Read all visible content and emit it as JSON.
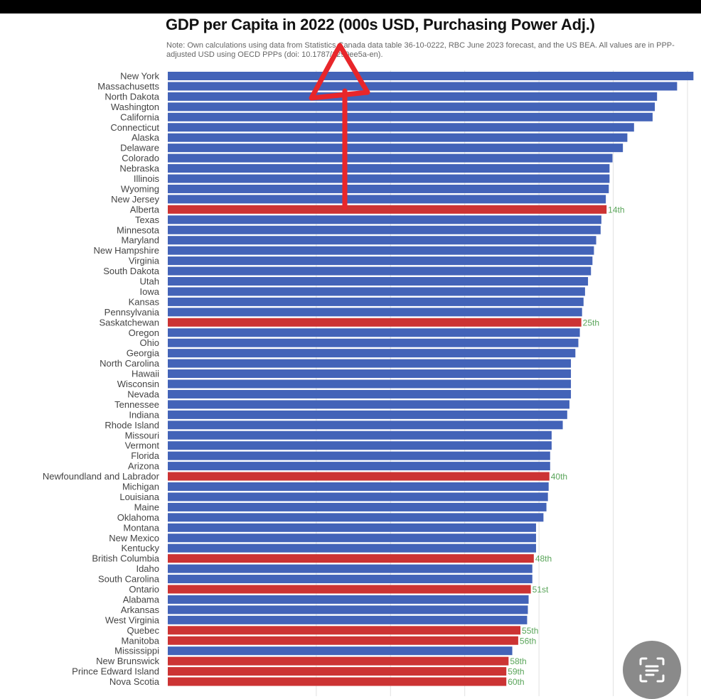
{
  "chart_data": {
    "type": "bar",
    "orientation": "horizontal",
    "title": "GDP per Capita in 2022 (000s USD, Purchasing Power Adj.)",
    "note": "Note: Own calculations using data from Statistics Canada data table 36-10-0222, RBC June 2023 forecast, and the US BEA. All values are in PPP-adjusted USD using OECD PPPs (doi: 10.1787/1290ee5a-en).",
    "xlim": [
      40,
      110
    ],
    "grid": true,
    "colors": {
      "us": "#4363b8",
      "canada": "#cc3333",
      "rank_label": "#5aa55a"
    },
    "categories": [
      "New York",
      "Massachusetts",
      "North Dakota",
      "Washington",
      "California",
      "Connecticut",
      "Alaska",
      "Delaware",
      "Colorado",
      "Nebraska",
      "Illinois",
      "Wyoming",
      "New Jersey",
      "Alberta",
      "Texas",
      "Minnesota",
      "Maryland",
      "New Hampshire",
      "Virginia",
      "South Dakota",
      "Utah",
      "Iowa",
      "Kansas",
      "Pennsylvania",
      "Saskatchewan",
      "Oregon",
      "Ohio",
      "Georgia",
      "North Carolina",
      "Hawaii",
      "Wisconsin",
      "Nevada",
      "Tennessee",
      "Indiana",
      "Rhode Island",
      "Missouri",
      "Vermont",
      "Florida",
      "Arizona",
      "Newfoundland and Labrador",
      "Michigan",
      "Louisiana",
      "Maine",
      "Oklahoma",
      "Montana",
      "New Mexico",
      "Kentucky",
      "British Columbia",
      "Idaho",
      "South Carolina",
      "Ontario",
      "Alabama",
      "Arkansas",
      "West Virginia",
      "Quebec",
      "Manitoba",
      "Mississippi",
      "New Brunswick",
      "Prince Edward Island",
      "Nova Scotia"
    ],
    "values": [
      110.8,
      108.6,
      105.9,
      105.6,
      105.3,
      102.8,
      101.9,
      101.3,
      99.9,
      99.5,
      99.5,
      99.4,
      99.0,
      99.1,
      98.4,
      98.3,
      97.7,
      97.4,
      97.2,
      97.0,
      96.6,
      96.2,
      96.0,
      95.8,
      95.7,
      95.5,
      95.3,
      94.9,
      94.3,
      94.3,
      94.3,
      94.3,
      94.1,
      93.8,
      93.2,
      91.7,
      91.7,
      91.5,
      91.5,
      91.4,
      91.3,
      91.2,
      91.0,
      90.6,
      89.6,
      89.6,
      89.6,
      89.3,
      89.1,
      89.1,
      88.9,
      88.6,
      88.5,
      88.4,
      87.5,
      87.2,
      86.4,
      85.9,
      85.6,
      85.6
    ],
    "canadian": [
      "Alberta",
      "Saskatchewan",
      "Newfoundland and Labrador",
      "British Columbia",
      "Ontario",
      "Quebec",
      "Manitoba",
      "New Brunswick",
      "Prince Edward Island",
      "Nova Scotia"
    ],
    "rank_labels": [
      {
        "category": "Alberta",
        "label": "14th"
      },
      {
        "category": "Saskatchewan",
        "label": "25th"
      },
      {
        "category": "Newfoundland and Labrador",
        "label": "40th"
      },
      {
        "category": "British Columbia",
        "label": "48th"
      },
      {
        "category": "Ontario",
        "label": "51st"
      },
      {
        "category": "Quebec",
        "label": "55th"
      },
      {
        "category": "Manitoba",
        "label": "56th"
      },
      {
        "category": "New Brunswick",
        "label": "58th"
      },
      {
        "category": "Prince Edward Island",
        "label": "59th"
      },
      {
        "category": "Nova Scotia",
        "label": "60th"
      }
    ]
  },
  "overlay": {
    "annotation_arrow": "red-up-arrow-icon",
    "scan_button_icon": "text-scan-icon"
  }
}
